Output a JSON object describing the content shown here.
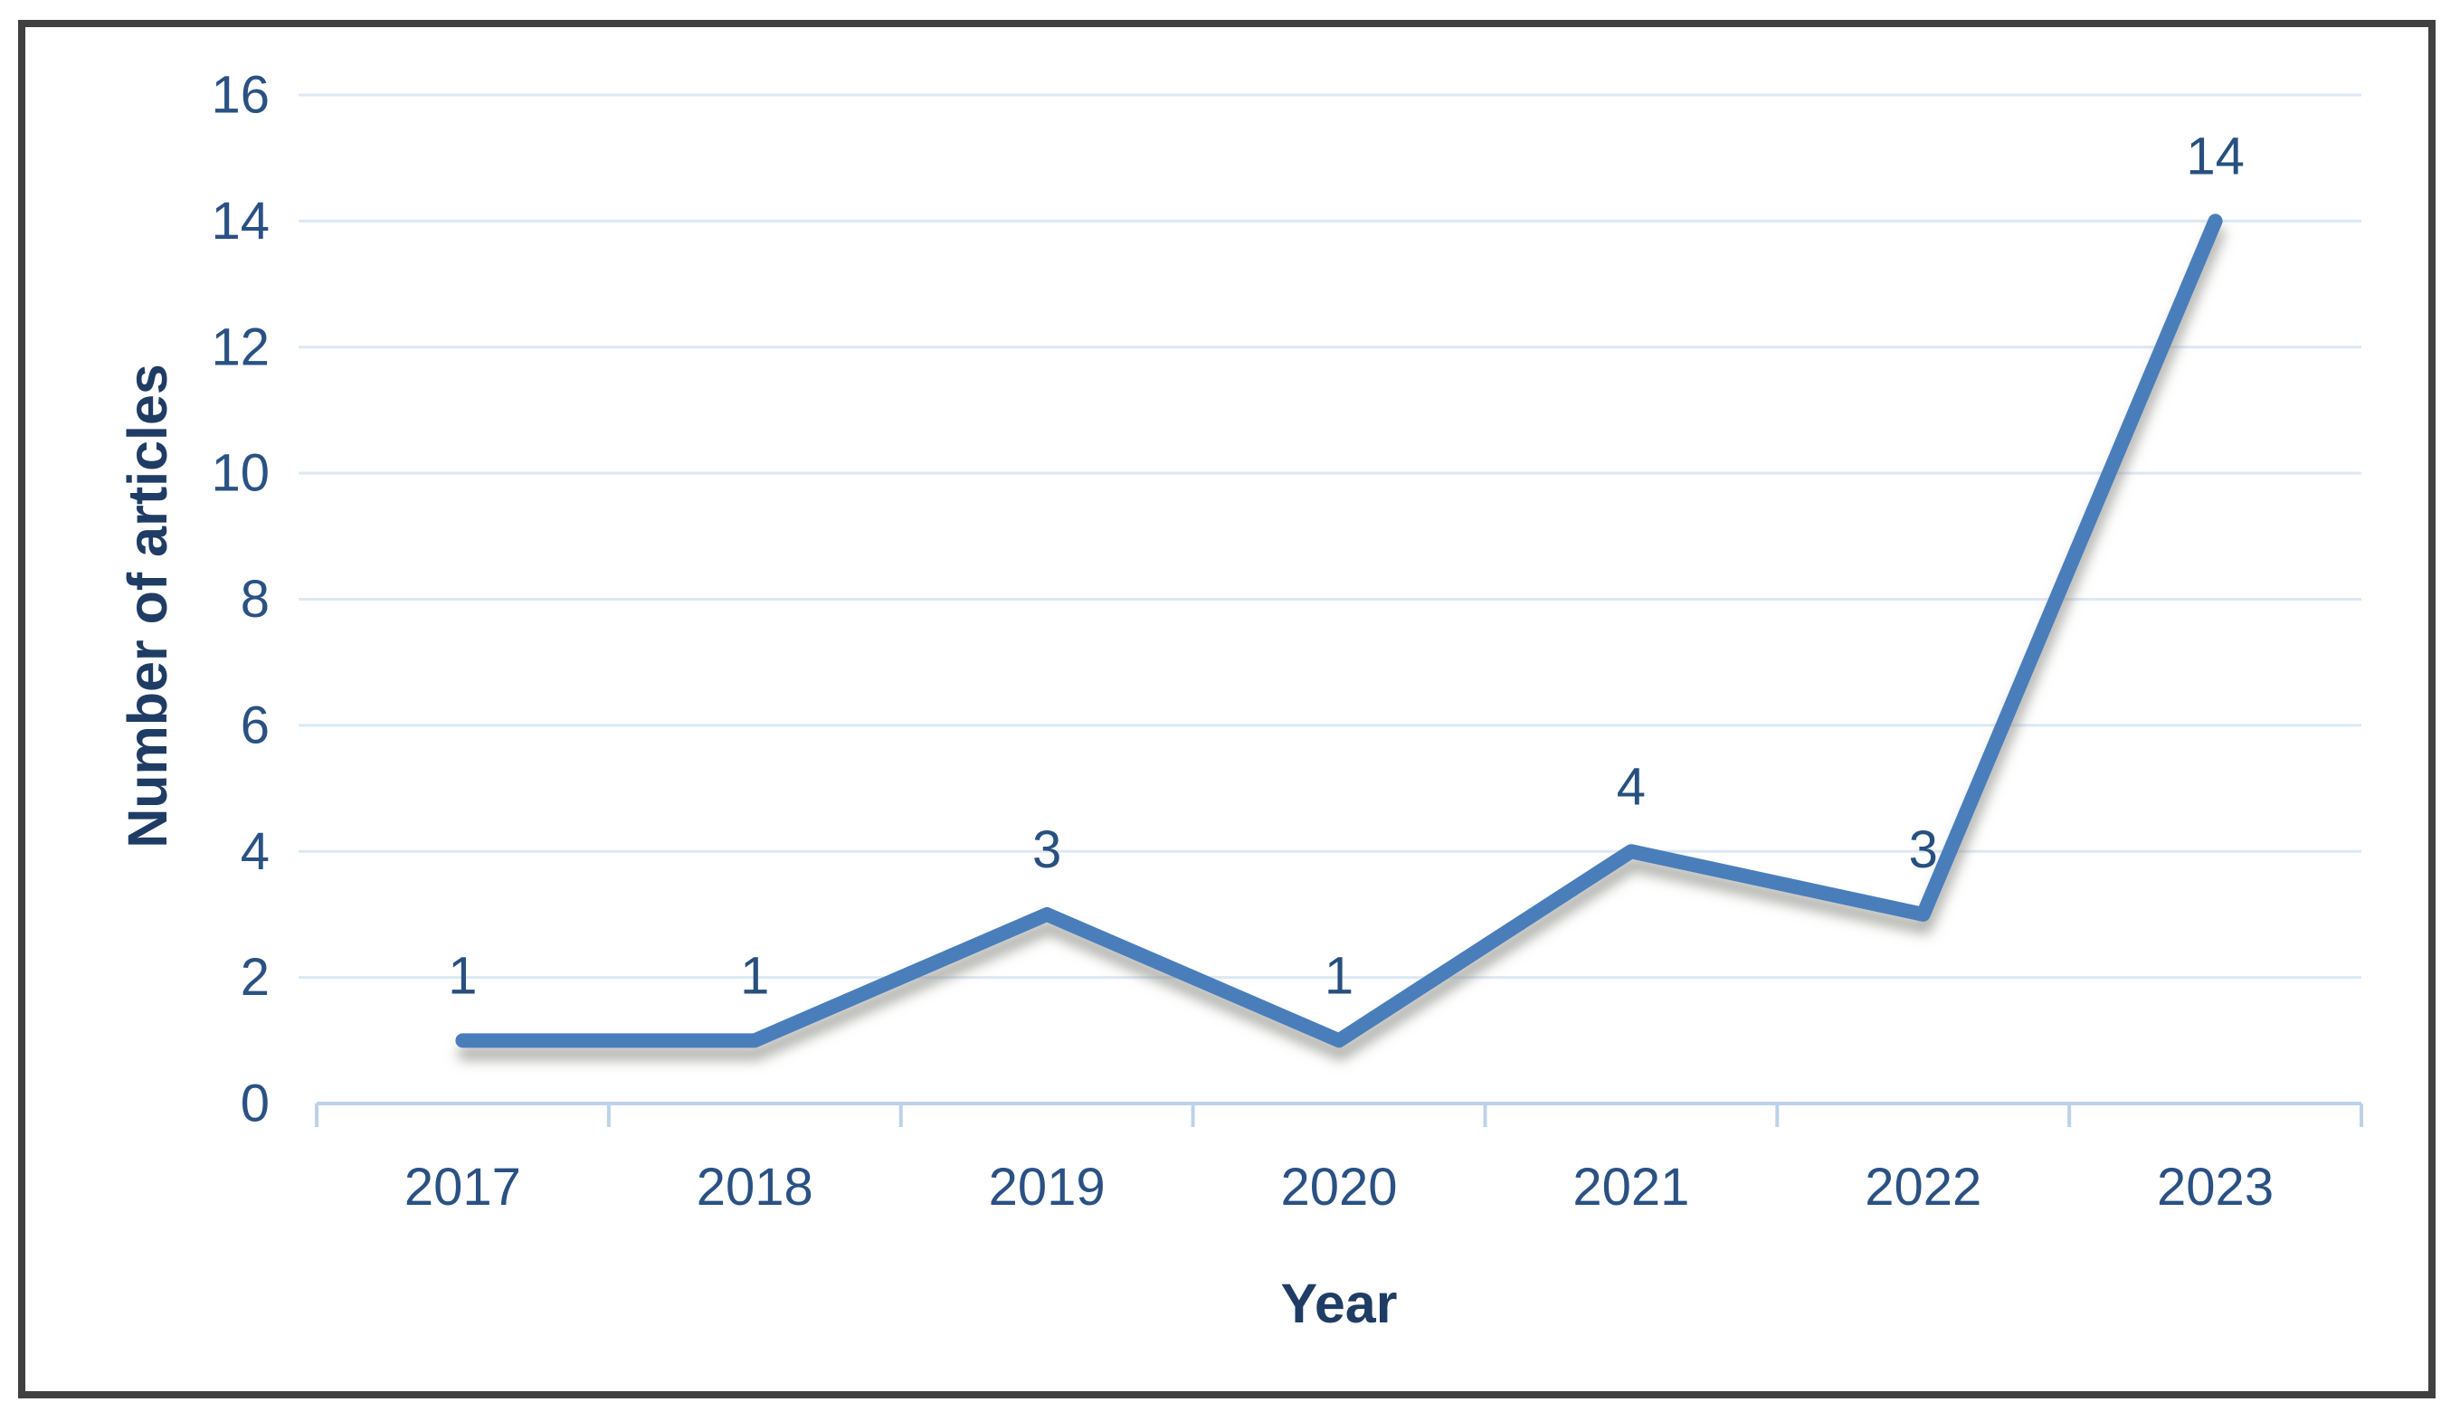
{
  "frame": {
    "border_color": "#404040",
    "background_color": "#ffffff"
  },
  "chart_data": {
    "type": "line",
    "title": "",
    "categories": [
      "2017",
      "2018",
      "2019",
      "2020",
      "2021",
      "2022",
      "2023"
    ],
    "series": [
      {
        "name": "Number of articles",
        "values": [
          1,
          1,
          3,
          1,
          4,
          3,
          14
        ]
      }
    ],
    "data_labels": [
      "1",
      "1",
      "3",
      "1",
      "4",
      "3",
      "14"
    ],
    "xlabel": "Year",
    "ylabel": "Number of articles",
    "ylim": [
      0,
      16
    ],
    "ytick_step": 2,
    "y_ticks": [
      "0",
      "2",
      "4",
      "6",
      "8",
      "10",
      "12",
      "14",
      "16"
    ],
    "grid": true,
    "legend": "none",
    "colors": {
      "line": "#4a7ebb",
      "line_shadow": "#8f8f89",
      "gridline": "#dde8f4",
      "axis_line": "#bdd2ea",
      "tick_text": "#2a5183",
      "data_label_text": "#27507f",
      "axis_title_text": "#1f3c64"
    }
  }
}
